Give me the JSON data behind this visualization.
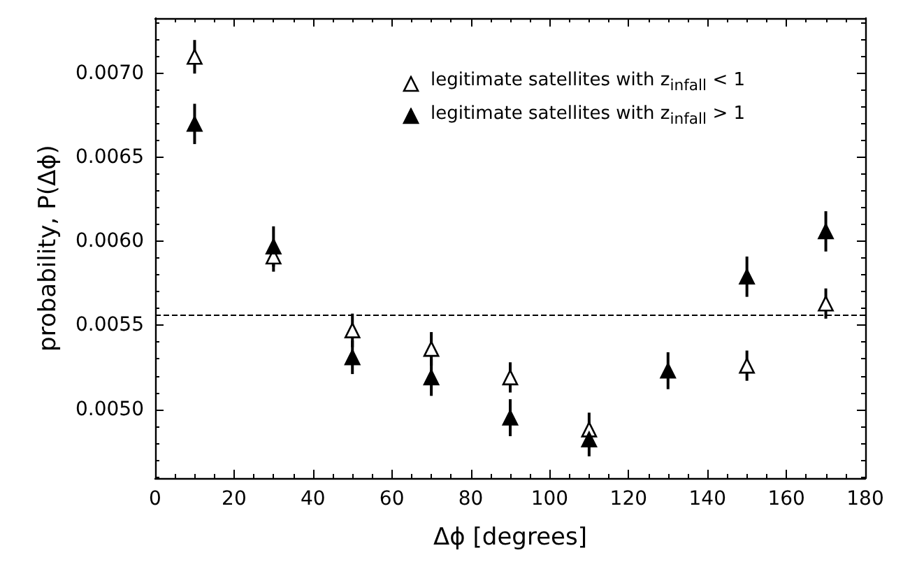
{
  "chart_data": {
    "type": "scatter",
    "xlabel": "Δϕ [degrees]",
    "ylabel": "probability, P(Δϕ)",
    "x": [
      10,
      30,
      50,
      70,
      90,
      110,
      130,
      150,
      170
    ],
    "series": [
      {
        "name": "legitimate satellites with z$_{infall}$ < 1",
        "color": "#ffffff",
        "values": [
          0.0071,
          0.00591,
          0.00547,
          0.00536,
          0.00519,
          0.00488,
          null,
          0.00526,
          0.00563
        ],
        "errors": [
          0.0001,
          9e-05,
          0.0001,
          0.0001,
          9e-05,
          0.0001,
          null,
          9e-05,
          9e-05
        ]
      },
      {
        "name": "legitimate satellites with z$_{infall}$ > 1",
        "color": "#000000",
        "values": [
          0.0067,
          0.00597,
          0.00531,
          0.00519,
          0.00495,
          0.00482,
          0.00523,
          0.00579,
          0.00606
        ],
        "errors": [
          0.00012,
          0.00012,
          0.0001,
          0.00011,
          0.00011,
          0.0001,
          0.00011,
          0.00012,
          0.00012
        ]
      }
    ],
    "marker": "triangle",
    "legend": "top right",
    "xlim": [
      0,
      180
    ],
    "xticks": [
      0,
      20,
      40,
      60,
      80,
      100,
      120,
      140,
      160,
      180
    ],
    "ylim": [
      0.00459,
      0.00733
    ],
    "yticks": [
      {
        "value": 0.005,
        "label": "0.0050"
      },
      {
        "value": 0.0055,
        "label": "0.0055"
      },
      {
        "value": 0.006,
        "label": "0.0060"
      },
      {
        "value": 0.0065,
        "label": "0.0065"
      },
      {
        "value": 0.007,
        "label": "0.0070"
      }
    ],
    "ref_lines": [
      {
        "axis": "y",
        "value": 0.00556,
        "line_style": "dashed",
        "color": "#000000"
      }
    ],
    "grid": false
  }
}
